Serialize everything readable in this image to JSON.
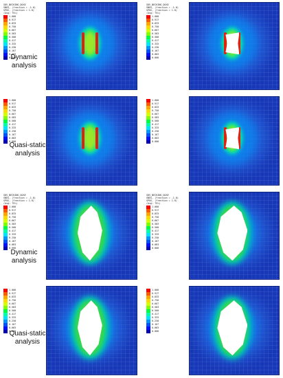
{
  "legend": {
    "header_lines": [
      "SDV_NECKING_DOSE",
      "SNEG, (fraction = -1.0)",
      "SPOS, (fraction = 1.0)",
      "(Avg: 75%)"
    ],
    "values": [
      "1.000",
      "0.917",
      "0.833",
      "0.750",
      "0.667",
      "0.583",
      "0.500",
      "0.417",
      "0.333",
      "0.250",
      "0.167",
      "0.083",
      "0.000"
    ],
    "colors": [
      "#ff0000",
      "#ff5a00",
      "#ffa500",
      "#ffd800",
      "#d4ff00",
      "#7fff00",
      "#00ff3f",
      "#00ffaa",
      "#00e5ff",
      "#0096ff",
      "#0050ff",
      "#0010ff",
      "#0000b4"
    ]
  },
  "rows": [
    {
      "label_line1": "Dynamic",
      "label_line2": "analysis"
    },
    {
      "label_line1": "Quasi-static",
      "label_line2": "analysis"
    },
    {
      "label_line1": "Dynamic",
      "label_line2": "analysis"
    },
    {
      "label_line1": "Quasi-static",
      "label_line2": "analysis"
    }
  ]
}
